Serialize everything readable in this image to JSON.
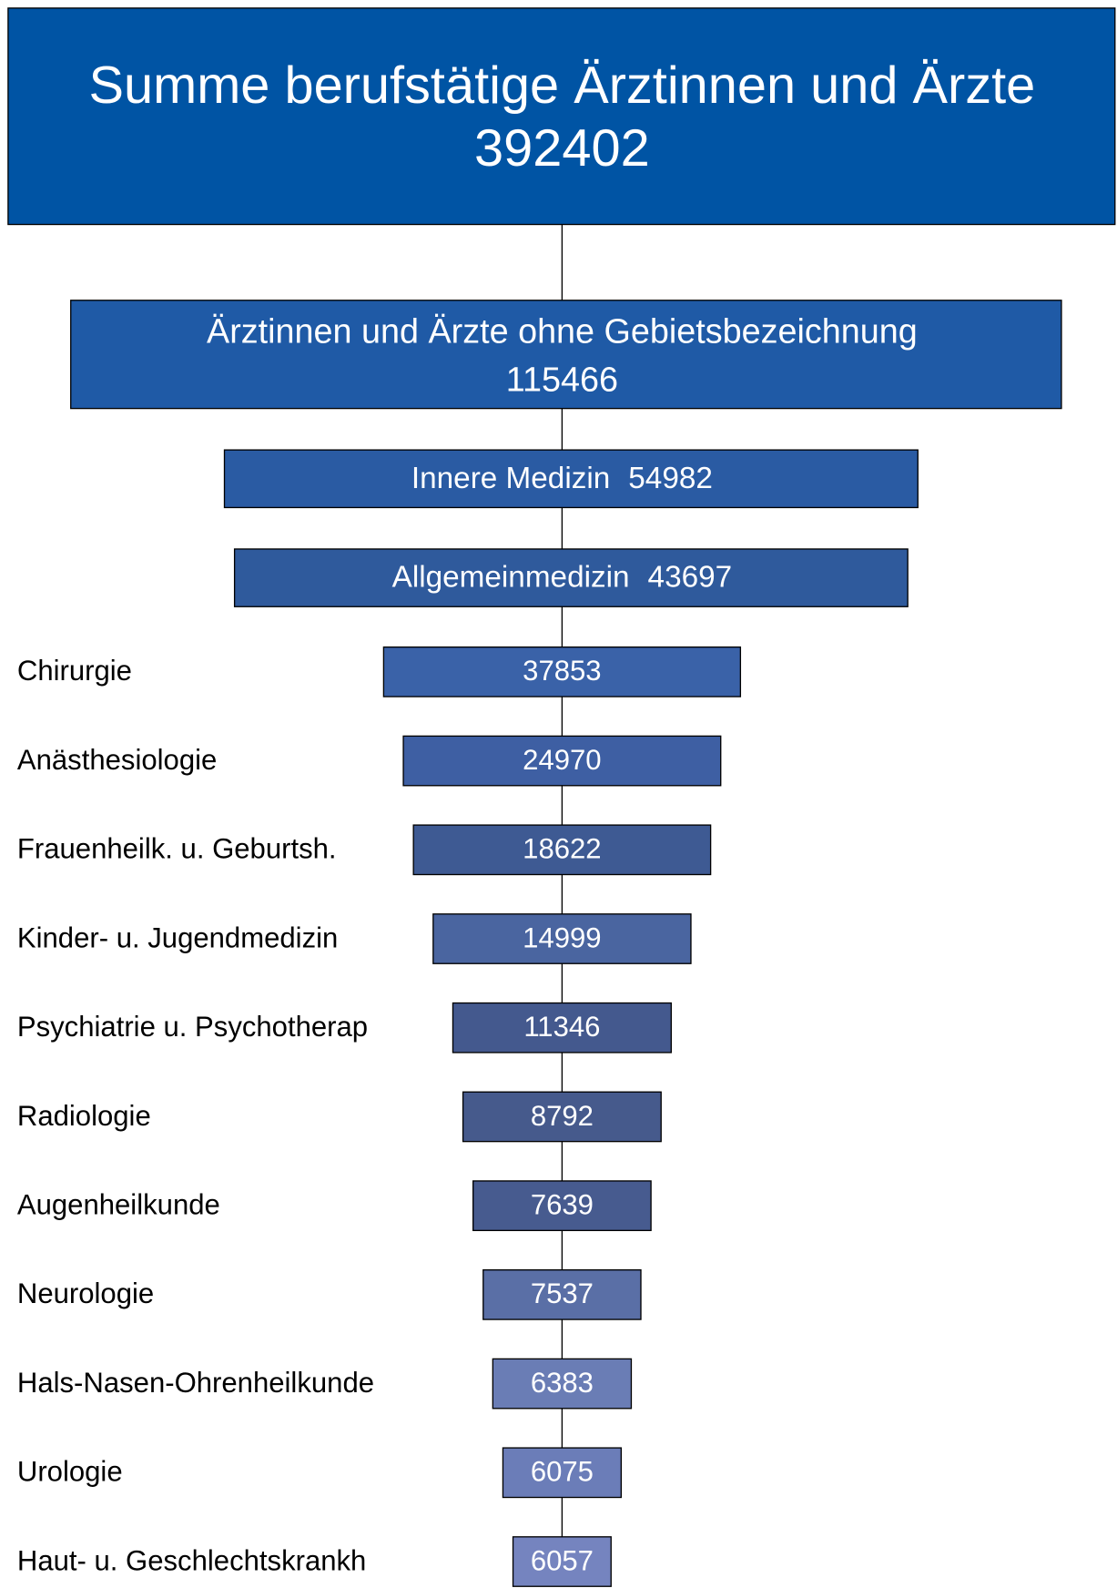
{
  "header": {
    "label": "Summe berufstätige Ärztinnen und Ärzte",
    "value": "392402"
  },
  "main": [
    {
      "label": "Ärztinnen und Ärzte ohne Gebietsbezeichnung",
      "value": "115466"
    },
    {
      "label": "Innere Medizin",
      "value": "54982"
    },
    {
      "label": "Allgemeinmedizin",
      "value": "43697"
    }
  ],
  "specialties": [
    {
      "label": "Chirurgie",
      "value": "37853"
    },
    {
      "label": "Anästhesiologie",
      "value": "24970"
    },
    {
      "label": "Frauenheilk. u. Geburtsh.",
      "value": "18622"
    },
    {
      "label": "Kinder- u. Jugendmedizin",
      "value": "14999"
    },
    {
      "label": "Psychiatrie u. Psychotherap",
      "value": "11346"
    },
    {
      "label": "Radiologie",
      "value": "8792"
    },
    {
      "label": "Augenheilkunde",
      "value": "7639"
    },
    {
      "label": "Neurologie",
      "value": "7537"
    },
    {
      "label": "Hals-Nasen-Ohrenheilkunde",
      "value": "6383"
    },
    {
      "label": "Urologie",
      "value": "6075"
    },
    {
      "label": "Haut- u. Geschlechtskrankh",
      "value": "6057"
    }
  ]
}
